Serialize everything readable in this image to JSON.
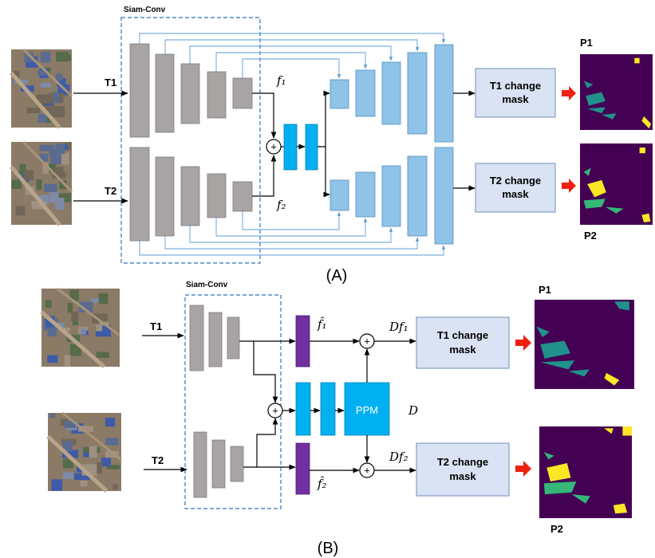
{
  "panel_a": {
    "encoder_label": "Siam-Conv",
    "inputs": [
      "T1",
      "T2"
    ],
    "features": [
      "f₁",
      "f₂"
    ],
    "outputs": [
      [
        "T1 change",
        "mask"
      ],
      [
        "T2 change",
        "mask"
      ]
    ],
    "predictions": [
      "P1",
      "P2"
    ],
    "caption": "(A)"
  },
  "panel_b": {
    "encoder_label": "Siam-Conv",
    "inputs": [
      "T1",
      "T2"
    ],
    "features": [
      "f̂₁",
      "f̂₂"
    ],
    "difference_features": [
      "Df₁",
      "Df₂"
    ],
    "module": "PPM",
    "difference": "D",
    "outputs": [
      [
        "T1 change",
        "mask"
      ],
      [
        "T2 change",
        "mask"
      ]
    ],
    "predictions": [
      "P1",
      "P2"
    ],
    "caption": "(B)"
  }
}
